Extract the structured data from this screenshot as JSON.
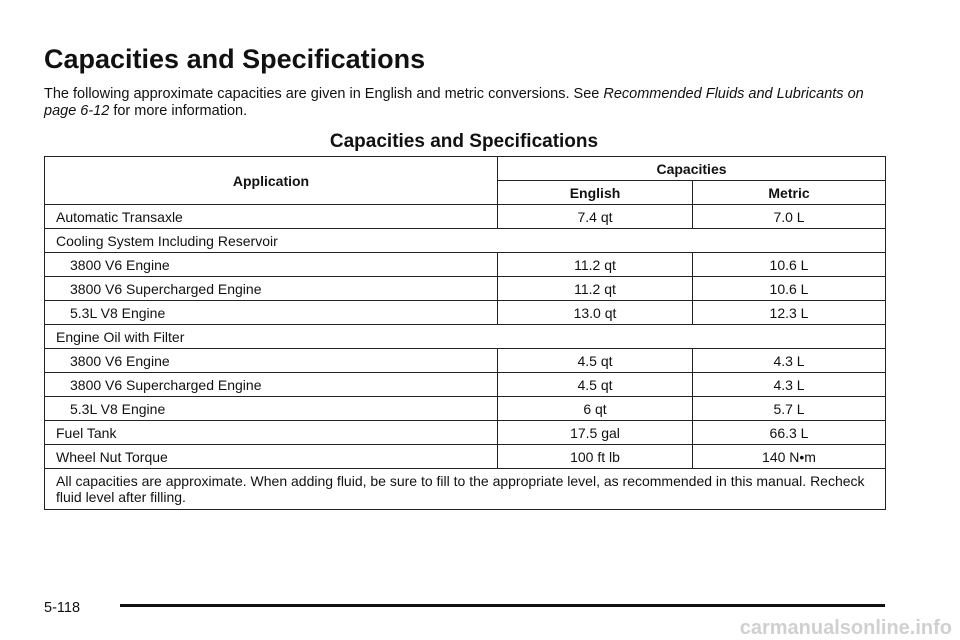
{
  "header": {
    "title": "Capacities and Specifications",
    "intro": {
      "text": "The following approximate capacities are given in English and metric conversions. See ",
      "link": "Recommended Fluids and Lubricants on page 6-12",
      "after": " for more information."
    }
  },
  "table": {
    "title": "Capacities and Specifications",
    "columns": {
      "application": "Application",
      "capacities": "Capacities",
      "english": "English",
      "metric": "Metric"
    },
    "rows": [
      [
        "Automatic Transaxle",
        "7.4 qt",
        "7.0 L"
      ],
      {
        "label": "Cooling System Including Reservoir",
        "rows": [
          [
            "3800 V6 Engine",
            "11.2 qt",
            "10.6 L"
          ],
          [
            "3800 V6 Supercharged Engine",
            "11.2 qt",
            "10.6 L"
          ],
          [
            "5.3L V8 Engine",
            "13.0 qt",
            "12.3 L"
          ]
        ]
      },
      {
        "label": "Engine Oil with Filter",
        "rows": [
          [
            "3800 V6 Engine",
            "4.5 qt",
            "4.3 L"
          ],
          [
            "3800 V6 Supercharged Engine",
            "4.5 qt",
            "4.3 L"
          ],
          [
            "5.3L V8 Engine",
            "6 qt",
            "5.7 L"
          ]
        ]
      },
      [
        "Fuel Tank",
        "17.5 gal",
        "66.3 L"
      ],
      [
        "Wheel Nut Torque",
        "100 ft lb",
        "140 N•m"
      ]
    ],
    "note": "All capacities are approximate. When adding fluid, be sure to fill to the appropriate level, as recommended in this manual. Recheck fluid level after filling."
  },
  "footer": {
    "page": "5-118",
    "watermark": "carmanualsonline.info"
  }
}
